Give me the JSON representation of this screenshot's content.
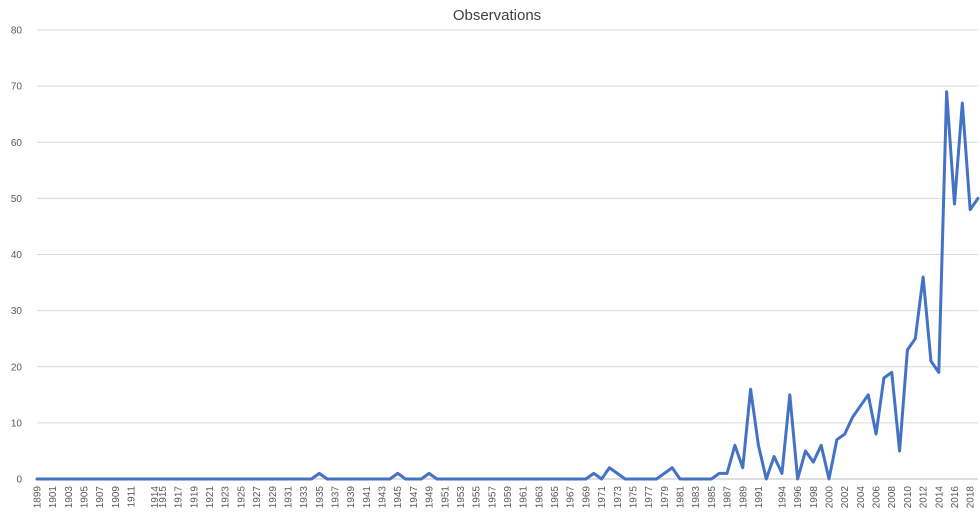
{
  "chart_data": {
    "type": "line",
    "title": "Observations",
    "xlabel": "",
    "ylabel": "",
    "ylim": [
      0,
      80
    ],
    "yticks": [
      0,
      10,
      20,
      30,
      40,
      50,
      60,
      70,
      80
    ],
    "grid": true,
    "legend": "none",
    "colors": {
      "series": "#4472c4",
      "grid": "#d9d9d9",
      "text": "#595959",
      "title": "#404040"
    },
    "x": [
      1899,
      1900,
      1901,
      1902,
      1903,
      1904,
      1905,
      1906,
      1907,
      1908,
      1909,
      1910,
      1911,
      1912,
      1913,
      1914,
      1915,
      1916,
      1917,
      1918,
      1919,
      1920,
      1921,
      1922,
      1923,
      1924,
      1925,
      1926,
      1927,
      1928,
      1929,
      1930,
      1931,
      1932,
      1933,
      1934,
      1935,
      1936,
      1937,
      1938,
      1939,
      1940,
      1941,
      1942,
      1943,
      1944,
      1945,
      1946,
      1947,
      1948,
      1949,
      1950,
      1951,
      1952,
      1953,
      1954,
      1955,
      1956,
      1957,
      1958,
      1959,
      1960,
      1961,
      1962,
      1963,
      1964,
      1965,
      1966,
      1967,
      1968,
      1969,
      1970,
      1971,
      1972,
      1973,
      1974,
      1975,
      1976,
      1977,
      1978,
      1979,
      1980,
      1981,
      1982,
      1983,
      1984,
      1985,
      1986,
      1987,
      1988,
      1989,
      1990,
      1991,
      1992,
      1993,
      1994,
      1995,
      1996,
      1997,
      1998,
      1999,
      2000,
      2001,
      2002,
      2003,
      2004,
      2005,
      2006,
      2007,
      2008,
      2009,
      2010,
      2011,
      2012,
      2013,
      2014,
      2015,
      2016,
      2017,
      2018,
      2019
    ],
    "tick_labels": [
      "1899",
      "1901",
      "1903",
      "1905",
      "1907",
      "1909",
      "1911",
      "1914",
      "1915",
      "1917",
      "1919",
      "1921",
      "1923",
      "1925",
      "1927",
      "1929",
      "1931",
      "1933",
      "1935",
      "1937",
      "1939",
      "1941",
      "1943",
      "1945",
      "1947",
      "1949",
      "1951",
      "1953",
      "1955",
      "1957",
      "1959",
      "1961",
      "1963",
      "1965",
      "1967",
      "1969",
      "1971",
      "1973",
      "1975",
      "1977",
      "1979",
      "1981",
      "1983",
      "1985",
      "1987",
      "1989",
      "1991",
      "1994",
      "1996",
      "1998",
      "2000",
      "2002",
      "2004",
      "2006",
      "2008",
      "2010",
      "2012",
      "2014",
      "2016",
      "2018"
    ],
    "series": [
      {
        "values": [
          0,
          0,
          0,
          0,
          0,
          0,
          0,
          0,
          0,
          0,
          0,
          0,
          0,
          0,
          0,
          0,
          0,
          0,
          0,
          0,
          0,
          0,
          0,
          0,
          0,
          0,
          0,
          0,
          0,
          0,
          0,
          0,
          0,
          0,
          0,
          0,
          1,
          0,
          0,
          0,
          0,
          0,
          0,
          0,
          0,
          0,
          1,
          0,
          0,
          0,
          1,
          0,
          0,
          0,
          0,
          0,
          0,
          0,
          0,
          0,
          0,
          0,
          0,
          0,
          0,
          0,
          0,
          0,
          0,
          0,
          0,
          1,
          0,
          2,
          1,
          0,
          0,
          0,
          0,
          0,
          1,
          2,
          0,
          0,
          0,
          0,
          0,
          1,
          1,
          6,
          2,
          16,
          6,
          0,
          4,
          1,
          15,
          0,
          5,
          3,
          6,
          0,
          7,
          8,
          11,
          13,
          15,
          8,
          18,
          19,
          5,
          23,
          25,
          36,
          21,
          19,
          69,
          49,
          67,
          48,
          50
        ]
      }
    ]
  }
}
